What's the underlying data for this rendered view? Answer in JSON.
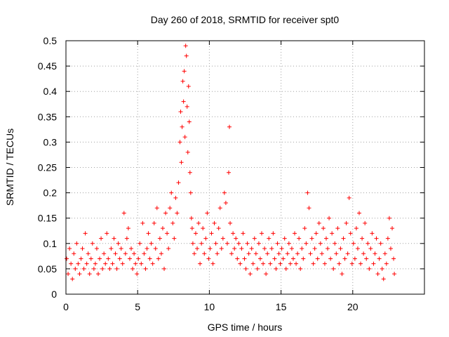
{
  "chart_data": {
    "type": "scatter",
    "title": "Day 260 of 2018, SRMTID for receiver spt0",
    "xlabel": "GPS time / hours",
    "ylabel": "SRMTID / TECUs",
    "xlim": [
      0,
      25
    ],
    "ylim": [
      0,
      0.5
    ],
    "xticks": [
      0,
      5,
      10,
      15,
      20
    ],
    "yticks": [
      0,
      0.05,
      0.1,
      0.15,
      0.2,
      0.25,
      0.3,
      0.35,
      0.4,
      0.45,
      0.5
    ],
    "xtick_labels": [
      "0",
      "5",
      "10",
      "15",
      "20"
    ],
    "ytick_labels": [
      "0",
      "0.05",
      "0.1",
      "0.15",
      "0.2",
      "0.25",
      "0.3",
      "0.35",
      "0.4",
      "0.45",
      "0.5"
    ],
    "grid": true,
    "marker": "+",
    "color": "#ff0000",
    "series": [
      {
        "name": "SRMTID",
        "points": [
          [
            0.05,
            0.07
          ],
          [
            0.15,
            0.04
          ],
          [
            0.25,
            0.09
          ],
          [
            0.35,
            0.06
          ],
          [
            0.45,
            0.03
          ],
          [
            0.55,
            0.08
          ],
          [
            0.65,
            0.05
          ],
          [
            0.75,
            0.1
          ],
          [
            0.85,
            0.06
          ],
          [
            0.95,
            0.04
          ],
          [
            1.05,
            0.07
          ],
          [
            1.15,
            0.09
          ],
          [
            1.25,
            0.05
          ],
          [
            1.35,
            0.12
          ],
          [
            1.45,
            0.06
          ],
          [
            1.55,
            0.08
          ],
          [
            1.65,
            0.04
          ],
          [
            1.75,
            0.07
          ],
          [
            1.85,
            0.1
          ],
          [
            1.95,
            0.05
          ],
          [
            2.05,
            0.06
          ],
          [
            2.15,
            0.09
          ],
          [
            2.25,
            0.04
          ],
          [
            2.35,
            0.07
          ],
          [
            2.45,
            0.11
          ],
          [
            2.55,
            0.05
          ],
          [
            2.65,
            0.08
          ],
          [
            2.75,
            0.06
          ],
          [
            2.85,
            0.12
          ],
          [
            2.95,
            0.07
          ],
          [
            3.05,
            0.05
          ],
          [
            3.15,
            0.09
          ],
          [
            3.25,
            0.06
          ],
          [
            3.35,
            0.11
          ],
          [
            3.45,
            0.08
          ],
          [
            3.55,
            0.05
          ],
          [
            3.65,
            0.1
          ],
          [
            3.75,
            0.07
          ],
          [
            3.85,
            0.09
          ],
          [
            3.95,
            0.06
          ],
          [
            4.05,
            0.16
          ],
          [
            4.15,
            0.08
          ],
          [
            4.25,
            0.11
          ],
          [
            4.35,
            0.13
          ],
          [
            4.45,
            0.07
          ],
          [
            4.55,
            0.09
          ],
          [
            4.65,
            0.05
          ],
          [
            4.75,
            0.08
          ],
          [
            4.85,
            0.06
          ],
          [
            4.95,
            0.04
          ],
          [
            5.05,
            0.07
          ],
          [
            5.15,
            0.1
          ],
          [
            5.25,
            0.06
          ],
          [
            5.35,
            0.14
          ],
          [
            5.45,
            0.08
          ],
          [
            5.55,
            0.05
          ],
          [
            5.65,
            0.09
          ],
          [
            5.75,
            0.12
          ],
          [
            5.85,
            0.07
          ],
          [
            5.95,
            0.1
          ],
          [
            6.05,
            0.06
          ],
          [
            6.15,
            0.14
          ],
          [
            6.25,
            0.09
          ],
          [
            6.35,
            0.17
          ],
          [
            6.45,
            0.07
          ],
          [
            6.55,
            0.11
          ],
          [
            6.65,
            0.08
          ],
          [
            6.75,
            0.13
          ],
          [
            6.85,
            0.05
          ],
          [
            6.95,
            0.16
          ],
          [
            7.05,
            0.12
          ],
          [
            7.15,
            0.09
          ],
          [
            7.25,
            0.17
          ],
          [
            7.35,
            0.2
          ],
          [
            7.45,
            0.14
          ],
          [
            7.55,
            0.11
          ],
          [
            7.65,
            0.19
          ],
          [
            7.75,
            0.16
          ],
          [
            7.85,
            0.22
          ],
          [
            7.95,
            0.3
          ],
          [
            8.0,
            0.36
          ],
          [
            8.05,
            0.26
          ],
          [
            8.1,
            0.33
          ],
          [
            8.15,
            0.42
          ],
          [
            8.2,
            0.38
          ],
          [
            8.25,
            0.44
          ],
          [
            8.3,
            0.31
          ],
          [
            8.35,
            0.49
          ],
          [
            8.4,
            0.47
          ],
          [
            8.45,
            0.37
          ],
          [
            8.5,
            0.28
          ],
          [
            8.55,
            0.41
          ],
          [
            8.6,
            0.34
          ],
          [
            8.65,
            0.24
          ],
          [
            8.7,
            0.2
          ],
          [
            8.75,
            0.15
          ],
          [
            8.8,
            0.13
          ],
          [
            8.85,
            0.1
          ],
          [
            8.95,
            0.08
          ],
          [
            9.05,
            0.12
          ],
          [
            9.15,
            0.09
          ],
          [
            9.25,
            0.14
          ],
          [
            9.35,
            0.06
          ],
          [
            9.45,
            0.1
          ],
          [
            9.55,
            0.13
          ],
          [
            9.65,
            0.08
          ],
          [
            9.75,
            0.11
          ],
          [
            9.85,
            0.16
          ],
          [
            9.95,
            0.07
          ],
          [
            10.05,
            0.09
          ],
          [
            10.15,
            0.12
          ],
          [
            10.25,
            0.06
          ],
          [
            10.35,
            0.14
          ],
          [
            10.45,
            0.1
          ],
          [
            10.55,
            0.08
          ],
          [
            10.65,
            0.13
          ],
          [
            10.75,
            0.17
          ],
          [
            10.85,
            0.09
          ],
          [
            10.95,
            0.11
          ],
          [
            11.05,
            0.2
          ],
          [
            11.15,
            0.18
          ],
          [
            11.25,
            0.1
          ],
          [
            11.35,
            0.24
          ],
          [
            11.4,
            0.33
          ],
          [
            11.45,
            0.14
          ],
          [
            11.55,
            0.08
          ],
          [
            11.65,
            0.12
          ],
          [
            11.75,
            0.09
          ],
          [
            11.85,
            0.11
          ],
          [
            11.95,
            0.07
          ],
          [
            12.05,
            0.1
          ],
          [
            12.15,
            0.06
          ],
          [
            12.25,
            0.09
          ],
          [
            12.35,
            0.12
          ],
          [
            12.45,
            0.07
          ],
          [
            12.55,
            0.05
          ],
          [
            12.65,
            0.1
          ],
          [
            12.75,
            0.08
          ],
          [
            12.85,
            0.04
          ],
          [
            12.95,
            0.09
          ],
          [
            13.05,
            0.06
          ],
          [
            13.15,
            0.11
          ],
          [
            13.25,
            0.08
          ],
          [
            13.35,
            0.05
          ],
          [
            13.45,
            0.1
          ],
          [
            13.55,
            0.07
          ],
          [
            13.65,
            0.12
          ],
          [
            13.75,
            0.06
          ],
          [
            13.85,
            0.09
          ],
          [
            13.95,
            0.04
          ],
          [
            14.05,
            0.08
          ],
          [
            14.15,
            0.11
          ],
          [
            14.25,
            0.06
          ],
          [
            14.35,
            0.09
          ],
          [
            14.45,
            0.12
          ],
          [
            14.55,
            0.07
          ],
          [
            14.65,
            0.05
          ],
          [
            14.75,
            0.1
          ],
          [
            14.85,
            0.08
          ],
          [
            14.95,
            0.06
          ],
          [
            15.05,
            0.09
          ],
          [
            15.15,
            0.07
          ],
          [
            15.25,
            0.11
          ],
          [
            15.35,
            0.05
          ],
          [
            15.45,
            0.08
          ],
          [
            15.55,
            0.1
          ],
          [
            15.65,
            0.06
          ],
          [
            15.75,
            0.09
          ],
          [
            15.85,
            0.07
          ],
          [
            15.95,
            0.12
          ],
          [
            16.05,
            0.06
          ],
          [
            16.15,
            0.08
          ],
          [
            16.25,
            0.11
          ],
          [
            16.35,
            0.05
          ],
          [
            16.45,
            0.09
          ],
          [
            16.55,
            0.07
          ],
          [
            16.65,
            0.13
          ],
          [
            16.75,
            0.1
          ],
          [
            16.85,
            0.2
          ],
          [
            16.95,
            0.17
          ],
          [
            17.05,
            0.08
          ],
          [
            17.15,
            0.11
          ],
          [
            17.25,
            0.06
          ],
          [
            17.35,
            0.09
          ],
          [
            17.45,
            0.12
          ],
          [
            17.55,
            0.07
          ],
          [
            17.65,
            0.14
          ],
          [
            17.75,
            0.1
          ],
          [
            17.85,
            0.08
          ],
          [
            17.95,
            0.13
          ],
          [
            18.05,
            0.06
          ],
          [
            18.15,
            0.11
          ],
          [
            18.25,
            0.09
          ],
          [
            18.35,
            0.15
          ],
          [
            18.45,
            0.07
          ],
          [
            18.55,
            0.12
          ],
          [
            18.65,
            0.05
          ],
          [
            18.75,
            0.1
          ],
          [
            18.85,
            0.08
          ],
          [
            18.95,
            0.13
          ],
          [
            19.05,
            0.06
          ],
          [
            19.15,
            0.09
          ],
          [
            19.25,
            0.04
          ],
          [
            19.35,
            0.11
          ],
          [
            19.45,
            0.07
          ],
          [
            19.55,
            0.14
          ],
          [
            19.65,
            0.08
          ],
          [
            19.75,
            0.19
          ],
          [
            19.85,
            0.12
          ],
          [
            19.95,
            0.06
          ],
          [
            20.05,
            0.1
          ],
          [
            20.15,
            0.07
          ],
          [
            20.25,
            0.13
          ],
          [
            20.35,
            0.09
          ],
          [
            20.45,
            0.16
          ],
          [
            20.55,
            0.06
          ],
          [
            20.65,
            0.11
          ],
          [
            20.75,
            0.08
          ],
          [
            20.85,
            0.14
          ],
          [
            20.95,
            0.07
          ],
          [
            21.05,
            0.1
          ],
          [
            21.15,
            0.05
          ],
          [
            21.25,
            0.09
          ],
          [
            21.35,
            0.12
          ],
          [
            21.45,
            0.06
          ],
          [
            21.55,
            0.08
          ],
          [
            21.65,
            0.11
          ],
          [
            21.75,
            0.04
          ],
          [
            21.85,
            0.07
          ],
          [
            21.95,
            0.1
          ],
          [
            22.05,
            0.05
          ],
          [
            22.15,
            0.03
          ],
          [
            22.25,
            0.08
          ],
          [
            22.35,
            0.06
          ],
          [
            22.45,
            0.11
          ],
          [
            22.55,
            0.15
          ],
          [
            22.65,
            0.09
          ],
          [
            22.75,
            0.13
          ],
          [
            22.85,
            0.07
          ],
          [
            22.9,
            0.04
          ]
        ]
      }
    ]
  }
}
